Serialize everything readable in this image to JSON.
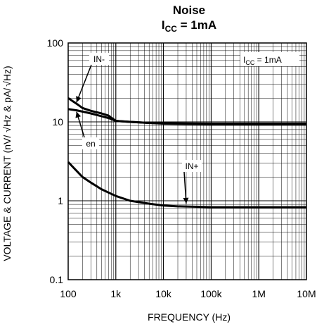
{
  "chart_data": {
    "type": "line",
    "title": "Noise",
    "subtitle": "I",
    "subtitle_sub": "CC",
    "subtitle_rest": " = 1mA",
    "xlabel": "FREQUENCY (Hz)",
    "ylabel": "VOLTAGE & CURRENT (nV/ √Hz & pA/ √Hz)",
    "ylabel_parts": [
      "VOLTAGE & CURRENT (nV/",
      "Hz & pA/",
      "Hz)"
    ],
    "x_scale": "log",
    "y_scale": "log",
    "xlim": [
      100,
      10000000
    ],
    "ylim": [
      0.1,
      100
    ],
    "x_ticks": [
      100,
      1000,
      10000,
      100000,
      1000000,
      10000000
    ],
    "x_tick_labels": [
      "100",
      "1k",
      "10k",
      "100k",
      "1M",
      "10M"
    ],
    "y_ticks": [
      0.1,
      1,
      10,
      100
    ],
    "y_tick_labels": [
      "0.1",
      "1",
      "10",
      "100"
    ],
    "grid": true,
    "condition_label": "I",
    "condition_sub": "CC",
    "condition_rest": " = 1mA",
    "series": [
      {
        "name": "IN-",
        "x": [
          100,
          150,
          200,
          300,
          500,
          700,
          1000,
          2000,
          5000,
          10000,
          100000,
          1000000,
          10000000
        ],
        "y": [
          20,
          17,
          15,
          13.8,
          12.8,
          12,
          10.3,
          10,
          9.7,
          9.6,
          9.5,
          9.5,
          9.5
        ]
      },
      {
        "name": "en",
        "x": [
          100,
          150,
          200,
          300,
          500,
          700,
          1000,
          2000,
          5000,
          10000,
          100000,
          1000000,
          10000000
        ],
        "y": [
          14.5,
          14,
          13.5,
          12.8,
          11.8,
          11.2,
          10.3,
          10,
          9.7,
          9.5,
          9.3,
          9.3,
          9.3
        ]
      },
      {
        "name": "IN+",
        "x": [
          100,
          150,
          200,
          300,
          500,
          1000,
          2000,
          5000,
          10000,
          20000,
          50000,
          100000,
          200000,
          1000000,
          10000000
        ],
        "y": [
          3.1,
          2.4,
          2.0,
          1.7,
          1.4,
          1.15,
          1.0,
          0.92,
          0.87,
          0.85,
          0.84,
          0.83,
          0.83,
          0.83,
          0.83
        ]
      }
    ],
    "annotations": [
      {
        "text": "IN-",
        "series": "IN-"
      },
      {
        "text": "en",
        "series": "en"
      },
      {
        "text": "IN+",
        "series": "IN+"
      }
    ]
  }
}
